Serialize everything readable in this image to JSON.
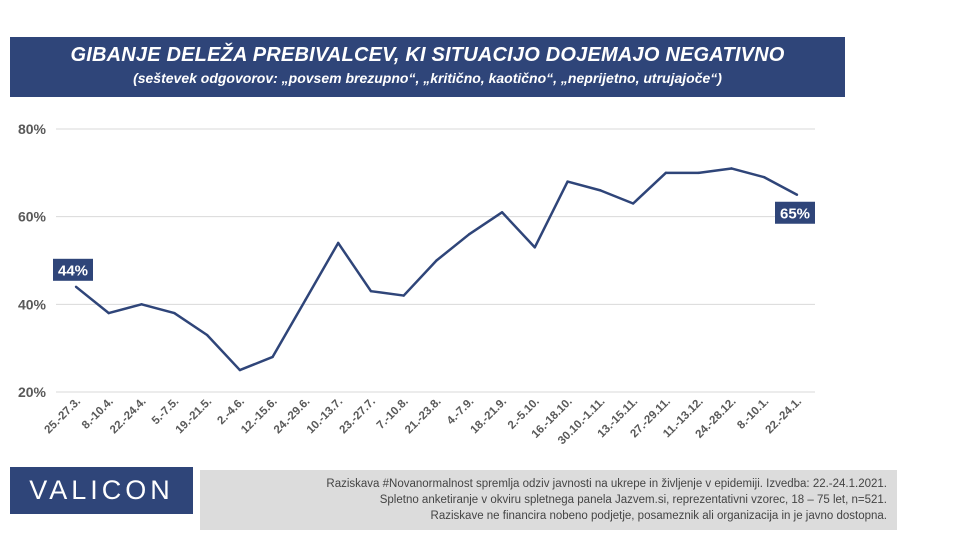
{
  "header": {
    "title": "GIBANJE DELEŽA PREBIVALCEV, KI SITUACIJO DOJEMAJO NEGATIVNO",
    "subtitle": "(seštevek odgovorov: „povsem brezupno“, „kritično, kaotično“, „neprijetno, utrujajoče“)"
  },
  "chart_data": {
    "type": "line",
    "categories": [
      "25.-27.3.",
      "8.-10.4.",
      "22.-24.4.",
      "5.-7.5.",
      "19.-21.5.",
      "2.-4.6.",
      "12.-15.6.",
      "24.-29.6.",
      "10.-13.7.",
      "23.-27.7.",
      "7.-10.8.",
      "21.-23.8.",
      "4.-7.9.",
      "18.-21.9.",
      "2.-5.10.",
      "16.-18.10.",
      "30.10.-1.11.",
      "13.-15.11.",
      "27.-29.11.",
      "11.-13.12.",
      "24.-28.12.",
      "8.-10.1.",
      "22.-24.1."
    ],
    "series": [
      {
        "values": [
          44,
          38,
          40,
          38,
          33,
          25,
          28,
          41,
          54,
          43,
          42,
          50,
          56,
          61,
          53,
          68,
          66,
          63,
          70,
          70,
          71,
          69,
          65
        ]
      }
    ],
    "yticks": [
      "20%",
      "40%",
      "60%",
      "80%"
    ],
    "ylim": [
      20,
      80
    ],
    "grid": true,
    "line_color": "#2f4579",
    "data_labels": [
      {
        "index": 0,
        "text": "44%"
      },
      {
        "index": 22,
        "text": "65%"
      }
    ]
  },
  "logo": {
    "text": "VALICON"
  },
  "footer": {
    "lines": [
      "Raziskava #Novanormalnost spremlja odziv javnosti na ukrepe in življenje v epidemiji. Izvedba: 22.-24.1.2021.",
      "Spletno anketiranje v okviru spletnega panela Jazvem.si, reprezentativni vzorec, 18 – 75 let, n=521.",
      "Raziskave ne financira nobeno podjetje, posameznik ali organizacija in je javno dostopna."
    ]
  }
}
